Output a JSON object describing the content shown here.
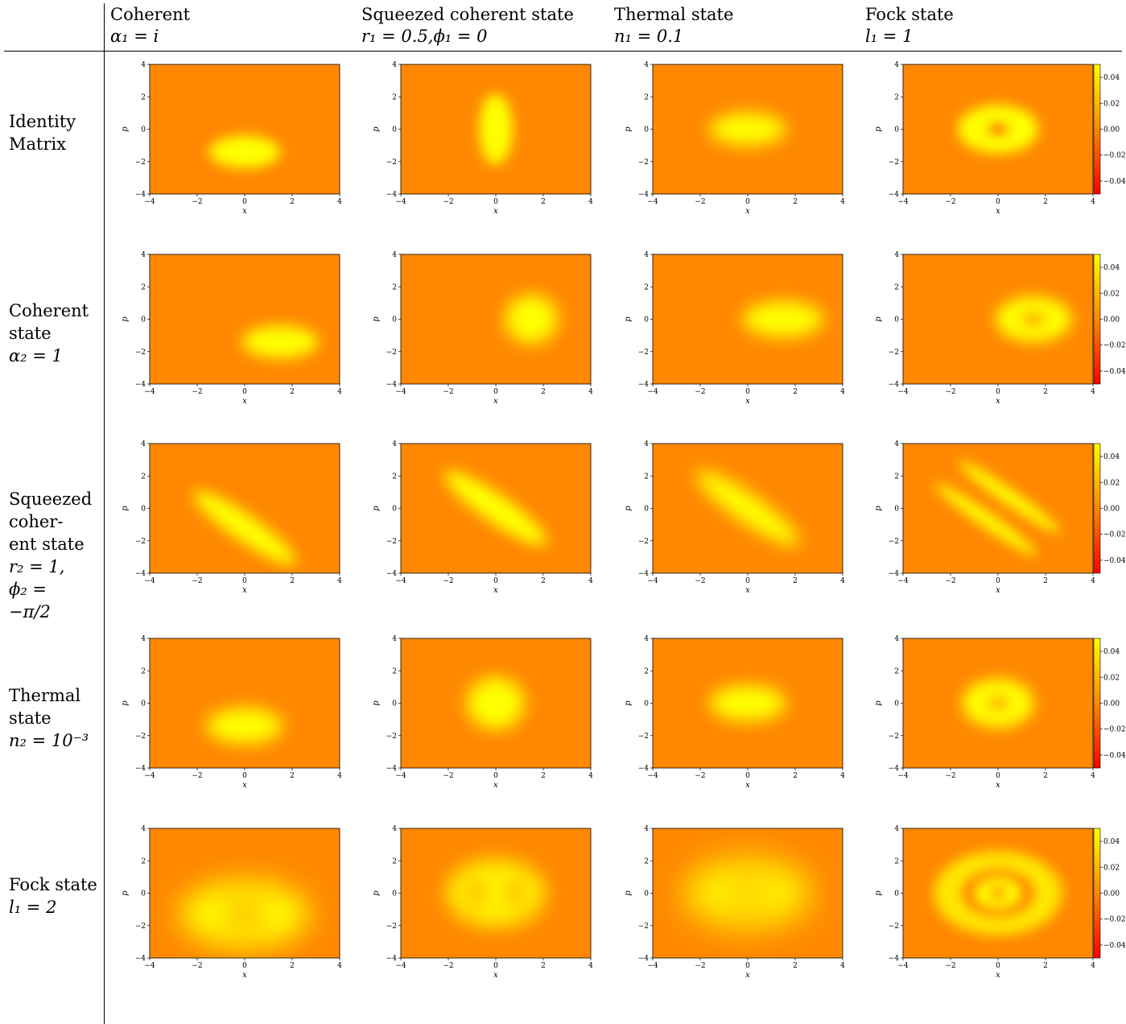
{
  "columns": [
    {
      "title": "Coherent",
      "subtitle": "α₁ = i"
    },
    {
      "title": "Squeezed coherent state",
      "subtitle": "r₁ = 0.5,ϕ₁ = 0"
    },
    {
      "title": "Thermal state",
      "subtitle": "n₁ = 0.1"
    },
    {
      "title": "Fock state",
      "subtitle": "l₁ = 1"
    }
  ],
  "rows": [
    {
      "lines": [
        "Identity",
        "Matrix"
      ]
    },
    {
      "lines": [
        "Coherent",
        "state",
        "α₂ = 1"
      ]
    },
    {
      "lines": [
        "Squeezed",
        "coher-",
        "ent state",
        "r₂ = 1,",
        "ϕ₂ =",
        "−π/2"
      ]
    },
    {
      "lines": [
        "Thermal",
        "state",
        "n₂ = 10⁻³"
      ]
    },
    {
      "lines": [
        "Fock state",
        "l₁ = 2"
      ]
    }
  ],
  "colors": {
    "background": "#ff8800",
    "high": "#ffff00",
    "low": "#ff0000"
  },
  "chart_data": {
    "type": "heatmap",
    "colormap": "autumn",
    "xlabel": "x",
    "ylabel": "p",
    "xlim": [
      -4,
      4
    ],
    "ylim": [
      -4,
      4
    ],
    "xticks": [
      "−4",
      "−2",
      "0",
      "2",
      "4"
    ],
    "yticks": [
      "−4",
      "−2",
      "0",
      "2",
      "4"
    ],
    "colorbar_ticks": [
      "0.04",
      "0.02",
      "0.00",
      "−0.02",
      "−0.04"
    ],
    "colorbar_range": [
      -0.05,
      0.05
    ],
    "panels": [
      {
        "row": 0,
        "col": 0,
        "shape": "ellipse",
        "cx": 0,
        "cy": -1.4,
        "rx": 1.5,
        "ry": 1.0,
        "rot": 0,
        "blur": 0.25,
        "colorbar": false
      },
      {
        "row": 0,
        "col": 1,
        "shape": "ellipse",
        "cx": 0,
        "cy": 0,
        "rx": 0.7,
        "ry": 2.2,
        "rot": 0,
        "blur": 0.25,
        "colorbar": false
      },
      {
        "row": 0,
        "col": 2,
        "shape": "ellipse",
        "cx": 0,
        "cy": 0,
        "rx": 1.6,
        "ry": 1.0,
        "rot": 0,
        "blur": 0.35,
        "colorbar": false
      },
      {
        "row": 0,
        "col": 3,
        "shape": "ring",
        "cx": 0,
        "cy": 0,
        "rx": 1.7,
        "ry": 1.5,
        "hole_rx": 0.45,
        "hole_ry": 0.38,
        "core": "low",
        "blur": 0.25,
        "colorbar": true
      },
      {
        "row": 1,
        "col": 0,
        "shape": "ellipse",
        "cx": 1.5,
        "cy": -1.4,
        "rx": 1.6,
        "ry": 1.0,
        "rot": 0,
        "blur": 0.3,
        "colorbar": false
      },
      {
        "row": 1,
        "col": 1,
        "shape": "ellipse",
        "cx": 1.5,
        "cy": 0,
        "rx": 1.1,
        "ry": 1.5,
        "rot": 0,
        "blur": 0.35,
        "colorbar": false
      },
      {
        "row": 1,
        "col": 2,
        "shape": "ellipse",
        "cx": 1.5,
        "cy": 0,
        "rx": 1.7,
        "ry": 1.1,
        "rot": 0,
        "blur": 0.35,
        "colorbar": false
      },
      {
        "row": 1,
        "col": 3,
        "shape": "ring",
        "cx": 1.5,
        "cy": 0,
        "rx": 1.6,
        "ry": 1.4,
        "hole_rx": 0.5,
        "hole_ry": 0.4,
        "core": "mid",
        "blur": 0.3,
        "colorbar": true
      },
      {
        "row": 2,
        "col": 0,
        "shape": "ellipse",
        "cx": 0,
        "cy": -1.2,
        "rx": 2.6,
        "ry": 0.8,
        "rot": -35,
        "blur": 0.3,
        "colorbar": false
      },
      {
        "row": 2,
        "col": 1,
        "shape": "ellipse",
        "cx": 0,
        "cy": 0,
        "rx": 2.6,
        "ry": 0.85,
        "rot": -35,
        "blur": 0.3,
        "colorbar": false
      },
      {
        "row": 2,
        "col": 2,
        "shape": "ellipse",
        "cx": 0,
        "cy": 0,
        "rx": 2.6,
        "ry": 0.85,
        "rot": -35,
        "blur": 0.35,
        "colorbar": false
      },
      {
        "row": 2,
        "col": 3,
        "shape": "bands",
        "cx": 0,
        "cy": 0,
        "rx": 2.6,
        "ry": 0.45,
        "offset": 0.85,
        "rot": -35,
        "blur": 0.25,
        "colorbar": true
      },
      {
        "row": 3,
        "col": 0,
        "shape": "ellipse",
        "cx": 0,
        "cy": -1.4,
        "rx": 1.6,
        "ry": 1.1,
        "rot": 0,
        "blur": 0.35,
        "colorbar": false
      },
      {
        "row": 3,
        "col": 1,
        "shape": "ellipse",
        "cx": 0,
        "cy": 0,
        "rx": 1.2,
        "ry": 1.6,
        "rot": 0,
        "blur": 0.35,
        "colorbar": false
      },
      {
        "row": 3,
        "col": 2,
        "shape": "ellipse",
        "cx": 0,
        "cy": 0,
        "rx": 1.6,
        "ry": 1.1,
        "rot": 0,
        "blur": 0.35,
        "colorbar": false
      },
      {
        "row": 3,
        "col": 3,
        "shape": "ring",
        "cx": 0,
        "cy": 0,
        "rx": 1.5,
        "ry": 1.5,
        "hole_rx": 0.45,
        "hole_ry": 0.4,
        "core": "mid",
        "blur": 0.3,
        "colorbar": true
      },
      {
        "row": 4,
        "col": 0,
        "shape": "ring",
        "cx": 0,
        "cy": -1.3,
        "rx": 2.7,
        "ry": 2.0,
        "hole_rx": 1.0,
        "hole_ry": 0.65,
        "core": "mid",
        "blur": 0.6,
        "colorbar": false
      },
      {
        "row": 4,
        "col": 1,
        "shape": "twolobes",
        "cx": 0,
        "cy": 0,
        "rx": 2.1,
        "ry": 2.1,
        "blur": 0.4,
        "colorbar": false
      },
      {
        "row": 4,
        "col": 2,
        "shape": "ring",
        "cx": 0,
        "cy": 0,
        "rx": 2.6,
        "ry": 2.0,
        "hole_rx": 1.0,
        "hole_ry": 0.6,
        "core": "mid",
        "blur": 0.7,
        "colorbar": false
      },
      {
        "row": 4,
        "col": 3,
        "shape": "target",
        "cx": 0,
        "cy": 0,
        "rx": 2.7,
        "ry": 2.6,
        "blur": 0.25,
        "colorbar": true
      }
    ]
  }
}
